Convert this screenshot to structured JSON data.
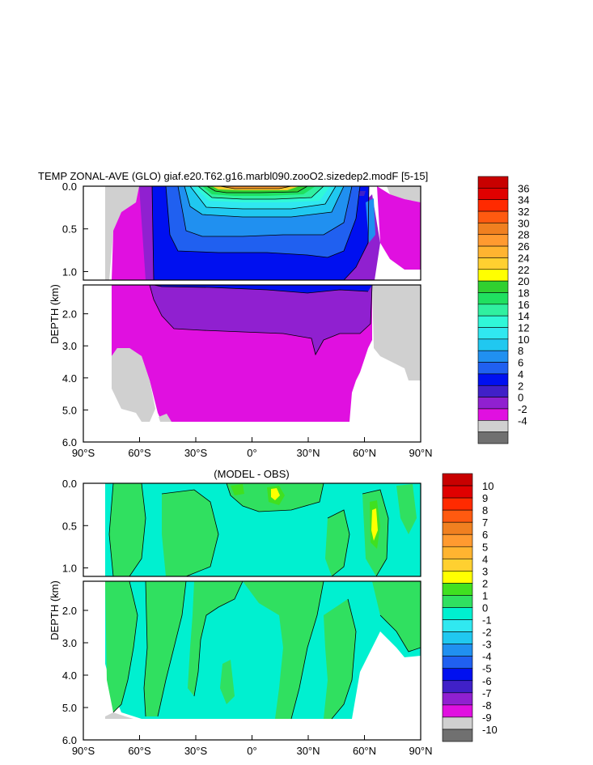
{
  "chart_data": [
    {
      "type": "heatmap",
      "title": "TEMP ZONAL-AVE (GLO) giaf.e20.T62.g16.marbl090.zooO2.sizedep2.modF [5-15]",
      "ylabel": "DEPTH (km)",
      "x_ticks": [
        "90°S",
        "60°S",
        "30°S",
        "0°",
        "30°N",
        "60°N",
        "90°N"
      ],
      "x_range": [
        -90,
        90
      ],
      "upper_panel_y_range_km": [
        0.0,
        1.1
      ],
      "upper_panel_y_ticks": [
        "0.0",
        "0.5",
        "1.0"
      ],
      "lower_panel_y_range_km": [
        1.1,
        6.0
      ],
      "lower_panel_y_ticks": [
        "2.0",
        "3.0",
        "4.0",
        "5.0",
        "6.0"
      ],
      "colorbar_levels": [
        "36",
        "34",
        "32",
        "30",
        "28",
        "26",
        "24",
        "22",
        "20",
        "18",
        "16",
        "14",
        "12",
        "10",
        "8",
        "6",
        "4",
        "2",
        "0",
        "-2",
        "-4"
      ],
      "colorbar_colors": [
        "#c80000",
        "#e00000",
        "#ff2a00",
        "#ff5a10",
        "#f08020",
        "#ff9a30",
        "#ffb430",
        "#ffd030",
        "#ffff00",
        "#30d030",
        "#20e060",
        "#30f0a0",
        "#30f8d8",
        "#30e8f0",
        "#20c8f0",
        "#2090f0",
        "#2060f0",
        "#0010f0",
        "#4020c8",
        "#9020d0",
        "#e010e0",
        "#d0d0d0",
        "#707070"
      ]
    },
    {
      "type": "heatmap",
      "title": "(MODEL - OBS)",
      "ylabel": "DEPTH (km)",
      "x_ticks": [
        "90°S",
        "60°S",
        "30°S",
        "0°",
        "30°N",
        "60°N",
        "90°N"
      ],
      "x_range": [
        -90,
        90
      ],
      "upper_panel_y_range_km": [
        0.0,
        1.1
      ],
      "upper_panel_y_ticks": [
        "0.0",
        "0.5",
        "1.0"
      ],
      "lower_panel_y_range_km": [
        1.1,
        6.0
      ],
      "lower_panel_y_ticks": [
        "2.0",
        "3.0",
        "4.0",
        "5.0",
        "6.0"
      ],
      "colorbar_levels": [
        "10",
        "9",
        "8",
        "7",
        "6",
        "5",
        "4",
        "3",
        "2",
        "1",
        "0",
        "-1",
        "-2",
        "-3",
        "-4",
        "-5",
        "-6",
        "-7",
        "-8",
        "-9",
        "-10"
      ],
      "colorbar_colors": [
        "#c80000",
        "#e00000",
        "#ff2a00",
        "#ff5a10",
        "#f08020",
        "#ff9a30",
        "#ffb430",
        "#ffd030",
        "#ffff00",
        "#40e020",
        "#30e060",
        "#00f0d0",
        "#30e8f0",
        "#20c8f0",
        "#2090f0",
        "#2060f0",
        "#0010f0",
        "#4020c8",
        "#9020d0",
        "#e010e0",
        "#d0d0d0",
        "#707070"
      ]
    }
  ]
}
